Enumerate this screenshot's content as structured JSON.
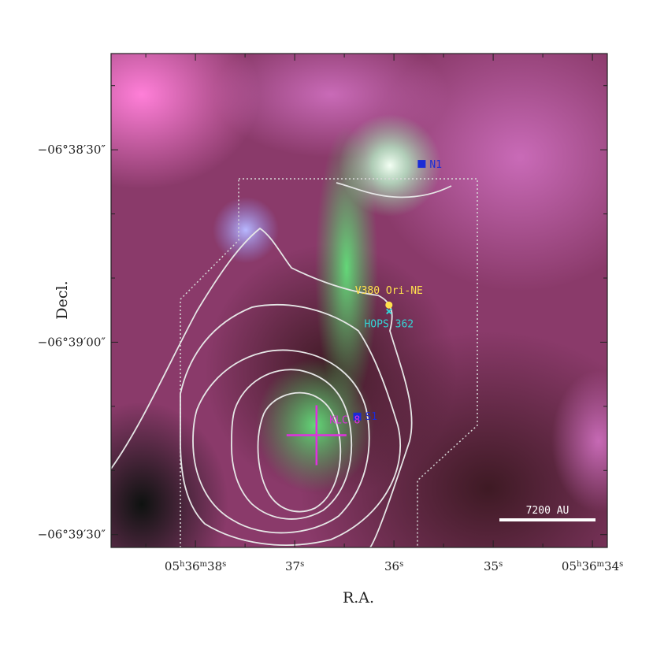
{
  "chart_data": {
    "type": "image",
    "xlabel": "R.A.",
    "ylabel": "Decl.",
    "x_axis": {
      "unit": "RA seconds (05h36m..s)",
      "range": [
        38.85,
        33.85
      ],
      "ticks": [
        {
          "value": 38,
          "label_main": "05",
          "sup1": "h",
          "mid": "36",
          "sup2": "m",
          "tail": "38",
          "sup3": "s"
        },
        {
          "value": 37,
          "label_main": "37",
          "sup1": "s"
        },
        {
          "value": 36,
          "label_main": "36",
          "sup1": "s"
        },
        {
          "value": 35,
          "label_main": "35",
          "sup1": "s"
        },
        {
          "value": 34,
          "label_main": "05",
          "sup1": "h",
          "mid": "36",
          "sup2": "m",
          "tail": "34",
          "sup3": "s"
        }
      ]
    },
    "y_axis": {
      "unit": "Dec arcsec offset from -06°38'",
      "range": [
        15,
        92
      ],
      "ticks": [
        {
          "value": 30,
          "label": "−06°38′30″"
        },
        {
          "value": 60,
          "label": "−06°39′00″"
        },
        {
          "value": 90,
          "label": "−06°39′30″"
        }
      ]
    },
    "sources": [
      {
        "name": "N1",
        "ra": 35.72,
        "dec": 32.2,
        "marker": "square",
        "color": "#1a2bd6"
      },
      {
        "name": "S1",
        "ra": 36.37,
        "dec": 71.6,
        "marker": "square",
        "color": "#1a2bd6"
      },
      {
        "name": "V380 Ori-NE",
        "ra": 36.05,
        "dec": 54.2,
        "marker": "circle",
        "color": "#ffe14d"
      },
      {
        "name": "HOPS 362",
        "ra": 36.05,
        "dec": 55.2,
        "marker": "x",
        "color": "#33d6d6"
      },
      {
        "name": "KLC 8",
        "ra": 36.78,
        "dec": 74.5,
        "marker": "cross",
        "color": "#e030e0"
      }
    ],
    "scale_bar": {
      "label": "7200 AU"
    }
  }
}
